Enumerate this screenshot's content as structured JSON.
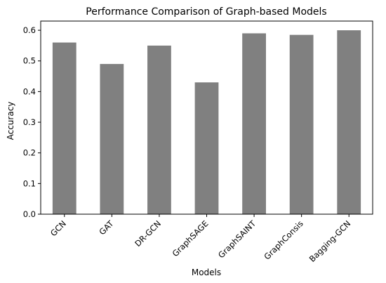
{
  "chart_data": {
    "type": "bar",
    "title": "Performance Comparison of Graph-based Models",
    "xlabel": "Models",
    "ylabel": "Accuracy",
    "categories": [
      "GCN",
      "GAT",
      "DR-GCN",
      "GraphSAGE",
      "GraphSAINT",
      "GraphConsis",
      "Bagging-GCN"
    ],
    "values": [
      0.56,
      0.49,
      0.55,
      0.43,
      0.59,
      0.585,
      0.6
    ],
    "ylim": [
      0,
      0.63
    ],
    "yticks": [
      "0.0",
      "0.1",
      "0.2",
      "0.3",
      "0.4",
      "0.5",
      "0.6"
    ],
    "bar_color": "#808080",
    "grid": false,
    "legend": "none"
  }
}
